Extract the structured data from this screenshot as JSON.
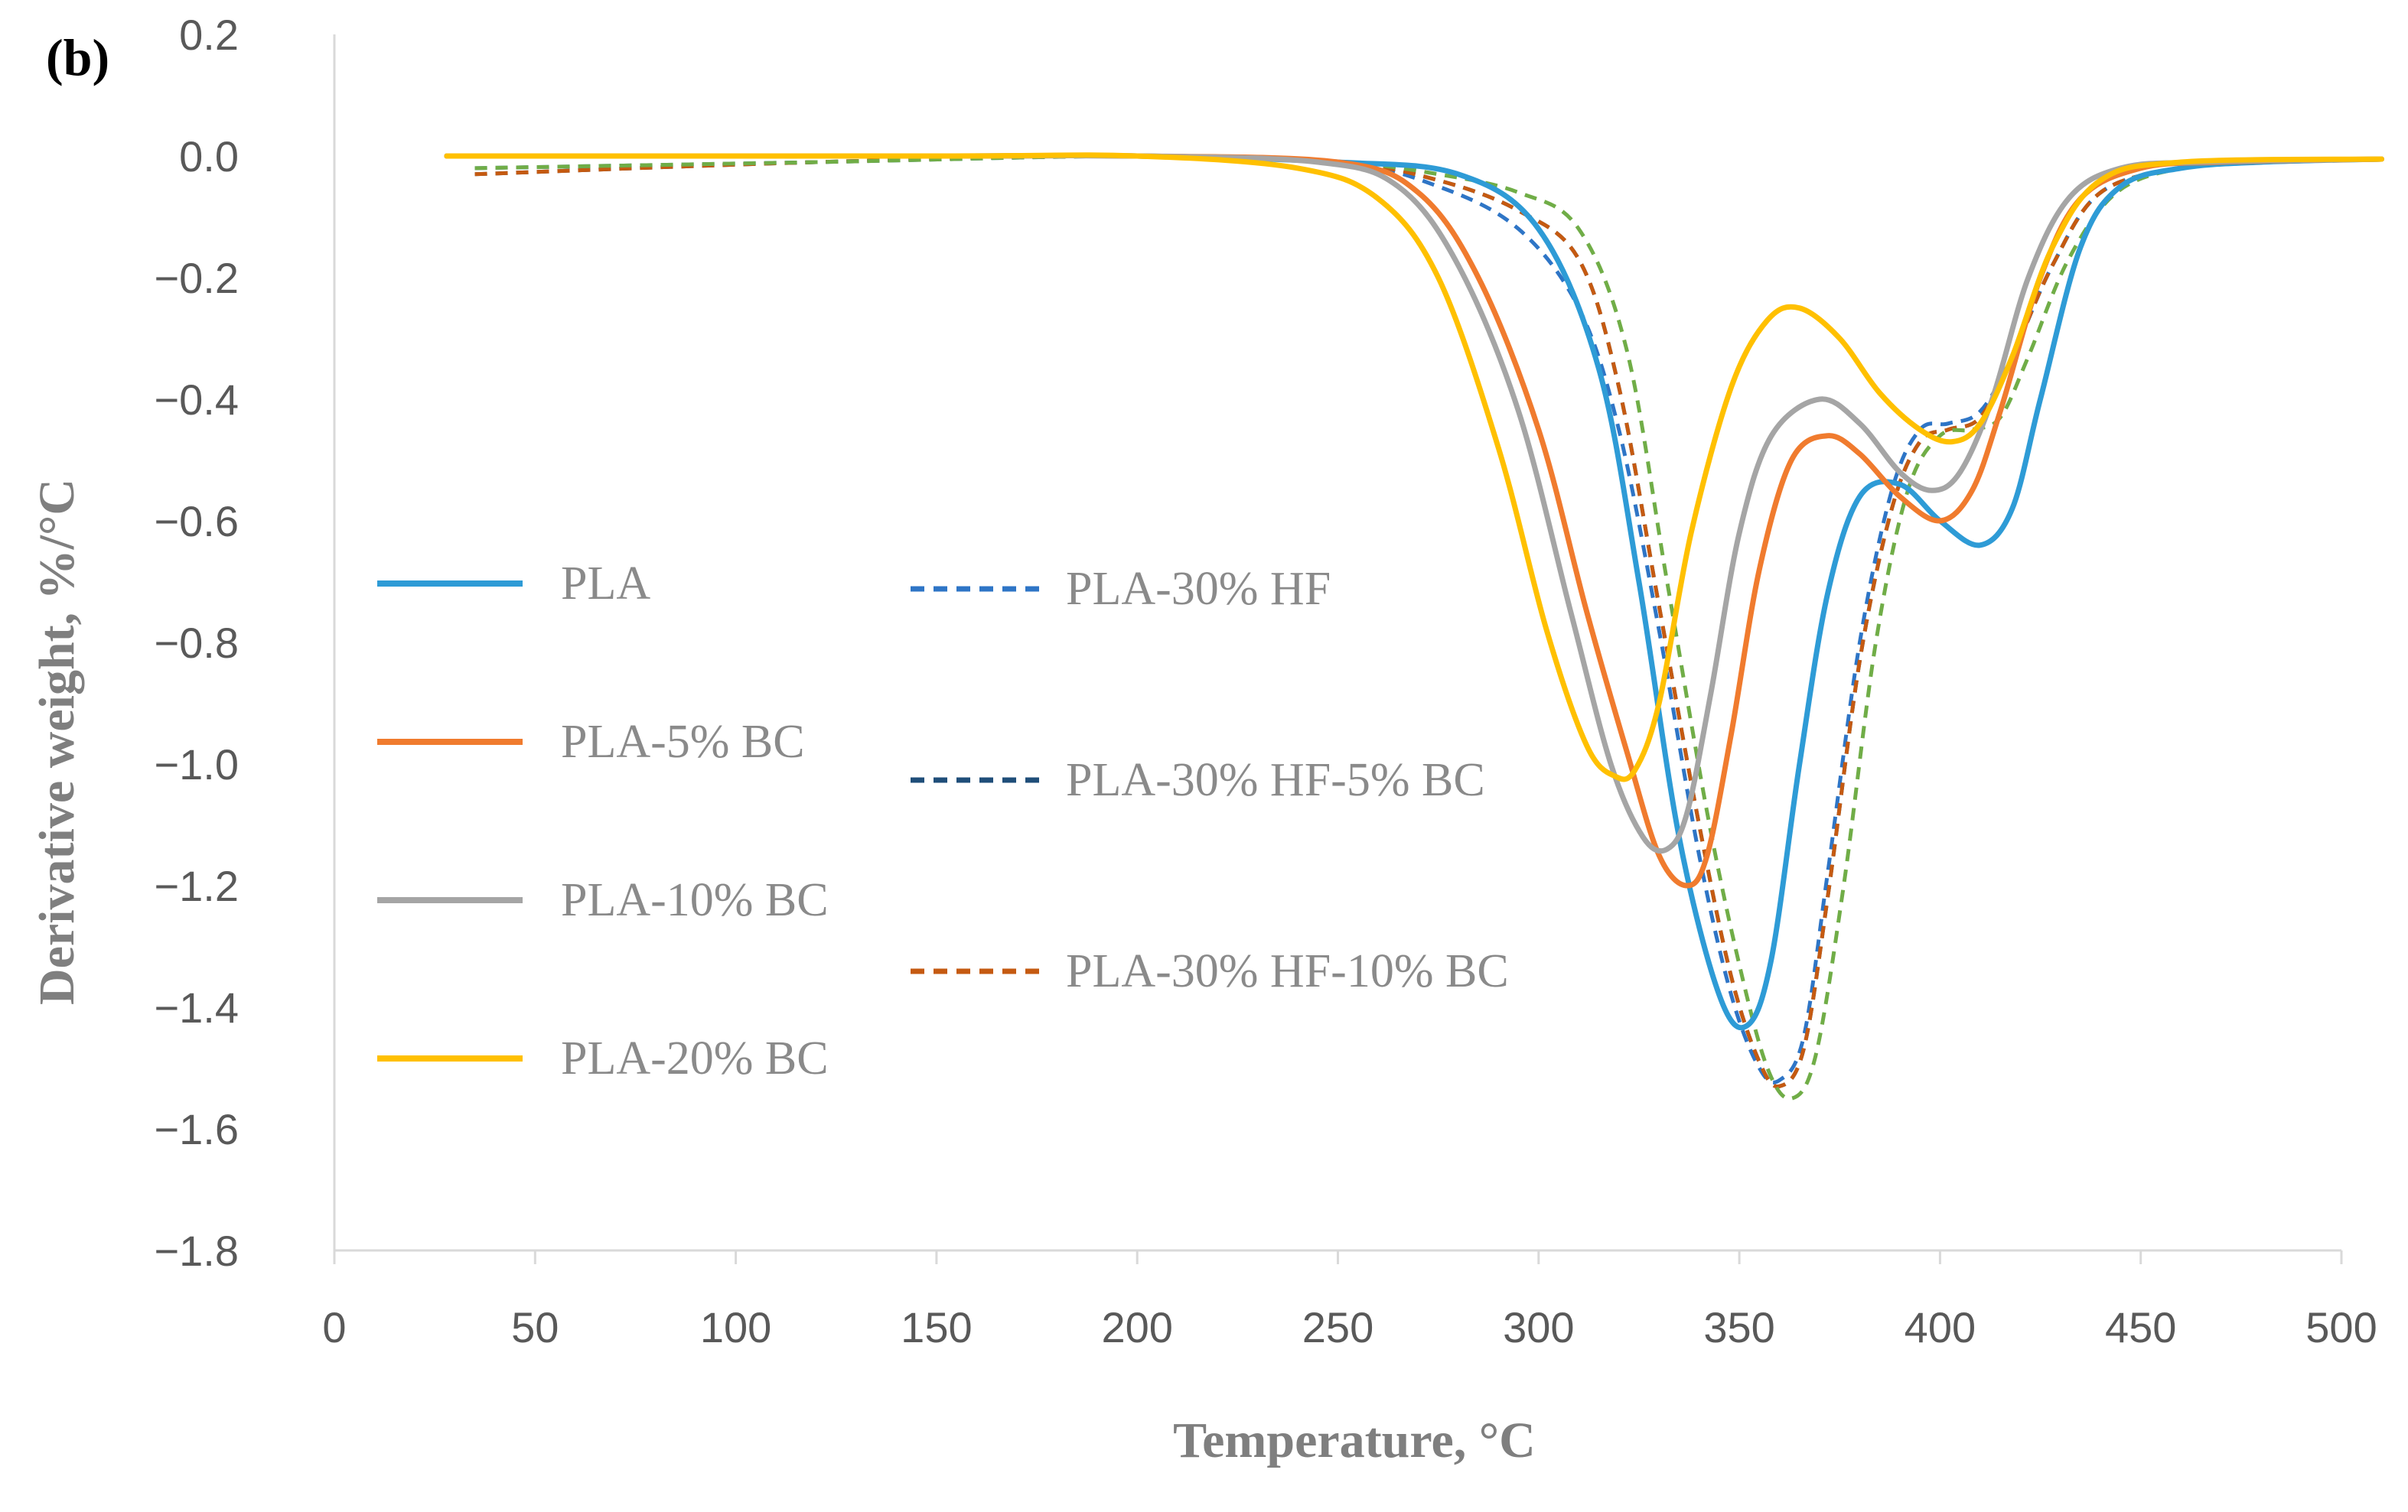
{
  "chart_data": {
    "type": "line",
    "panel_label": "(b)",
    "xlabel": "Temperature, °C",
    "ylabel": "Derivative weight, %/°C",
    "xlim": [
      0,
      500
    ],
    "ylim": [
      -1.8,
      0.2
    ],
    "x_ticks": [
      "0",
      "50",
      "100",
      "150",
      "200",
      "250",
      "300",
      "350",
      "400",
      "450",
      "500"
    ],
    "y_ticks": [
      "0.2",
      "0.0",
      "−0.2",
      "−0.4",
      "−0.6",
      "−0.8",
      "−1.0",
      "−1.2",
      "−1.4",
      "−1.6",
      "−1.8"
    ],
    "grid": false,
    "legend_position": "left-inside",
    "series": [
      {
        "name": "PLA",
        "color": "#2E9BD6",
        "dash": "solid",
        "x": [
          28,
          150,
          200,
          250,
          280,
          300,
          315,
          325,
          335,
          345,
          352,
          358,
          365,
          372,
          380,
          390,
          400,
          410,
          418,
          425,
          435,
          445,
          460,
          480,
          510
        ],
        "y": [
          0.0,
          0.0,
          0.0,
          -0.01,
          -0.03,
          -0.12,
          -0.35,
          -0.7,
          -1.12,
          -1.38,
          -1.43,
          -1.32,
          -1.0,
          -0.72,
          -0.56,
          -0.54,
          -0.6,
          -0.64,
          -0.58,
          -0.4,
          -0.15,
          -0.05,
          -0.02,
          -0.01,
          -0.005
        ]
      },
      {
        "name": "PLA-5% BC",
        "color": "#F07B2E",
        "dash": "solid",
        "x": [
          28,
          150,
          200,
          250,
          270,
          285,
          300,
          312,
          322,
          330,
          337,
          342,
          348,
          355,
          363,
          372,
          380,
          390,
          400,
          408,
          415,
          425,
          435,
          450,
          470,
          510
        ],
        "y": [
          0.0,
          0.0,
          0.0,
          -0.01,
          -0.06,
          -0.2,
          -0.45,
          -0.75,
          -0.98,
          -1.15,
          -1.2,
          -1.15,
          -0.95,
          -0.68,
          -0.5,
          -0.46,
          -0.49,
          -0.56,
          -0.6,
          -0.55,
          -0.42,
          -0.2,
          -0.07,
          -0.02,
          -0.01,
          -0.005
        ]
      },
      {
        "name": "PLA-10% BC",
        "color": "#A5A5A5",
        "dash": "solid",
        "x": [
          28,
          150,
          200,
          245,
          265,
          280,
          295,
          308,
          318,
          326,
          332,
          337,
          343,
          350,
          358,
          370,
          380,
          390,
          398,
          405,
          413,
          422,
          432,
          445,
          465,
          510
        ],
        "y": [
          0.0,
          0.0,
          0.0,
          -0.01,
          -0.05,
          -0.18,
          -0.42,
          -0.75,
          -1.0,
          -1.12,
          -1.14,
          -1.08,
          -0.88,
          -0.62,
          -0.46,
          -0.4,
          -0.44,
          -0.52,
          -0.55,
          -0.52,
          -0.4,
          -0.2,
          -0.07,
          -0.02,
          -0.01,
          -0.005
        ]
      },
      {
        "name": "PLA-20% BC",
        "color": "#FFC000",
        "dash": "solid",
        "x": [
          28,
          150,
          200,
          240,
          260,
          275,
          290,
          302,
          312,
          319,
          324,
          330,
          338,
          348,
          357,
          365,
          375,
          385,
          395,
          403,
          410,
          418,
          428,
          440,
          460,
          510
        ],
        "y": [
          0.0,
          0.0,
          0.0,
          -0.02,
          -0.07,
          -0.2,
          -0.48,
          -0.78,
          -0.97,
          -1.02,
          -1.01,
          -0.9,
          -0.62,
          -0.38,
          -0.27,
          -0.25,
          -0.3,
          -0.39,
          -0.45,
          -0.47,
          -0.44,
          -0.33,
          -0.15,
          -0.04,
          -0.01,
          -0.005
        ]
      },
      {
        "name": "PLA-30% HF",
        "color": "#2E75C6",
        "dash": "dashed",
        "x": [
          35,
          120,
          200,
          250,
          275,
          295,
          310,
          320,
          330,
          340,
          348,
          355,
          360,
          366,
          372,
          380,
          388,
          395,
          402,
          410,
          418,
          428,
          440,
          460,
          480,
          510
        ],
        "y": [
          -0.02,
          -0.01,
          0.0,
          -0.01,
          -0.05,
          -0.12,
          -0.25,
          -0.45,
          -0.78,
          -1.15,
          -1.38,
          -1.5,
          -1.52,
          -1.45,
          -1.18,
          -0.8,
          -0.55,
          -0.45,
          -0.44,
          -0.42,
          -0.33,
          -0.18,
          -0.06,
          -0.02,
          -0.01,
          -0.005
        ]
      },
      {
        "name": "PLA-30% HF-5% BC",
        "color": "#1F4E79",
        "dash": "dashed",
        "x": [
          35,
          120,
          200,
          250,
          275,
          295,
          310,
          320,
          330,
          340,
          348,
          355,
          360,
          366,
          372,
          380,
          388,
          395,
          402,
          410,
          418,
          428,
          440,
          460,
          480,
          510
        ],
        "y": [
          -0.03,
          -0.01,
          0.0,
          -0.01,
          -0.04,
          -0.09,
          -0.17,
          -0.38,
          -0.74,
          -1.1,
          -1.35,
          -1.49,
          -1.53,
          -1.47,
          -1.22,
          -0.83,
          -0.58,
          -0.47,
          -0.45,
          -0.43,
          -0.33,
          -0.18,
          -0.06,
          -0.02,
          -0.01,
          -0.005
        ]
      },
      {
        "name": "PLA-30% HF-10% BC",
        "color": "#C55A11",
        "dash": "dashed",
        "x": [
          35,
          120,
          200,
          250,
          275,
          295,
          310,
          320,
          330,
          340,
          348,
          355,
          360,
          366,
          372,
          380,
          388,
          395,
          402,
          410,
          418,
          428,
          440,
          460,
          480,
          510
        ],
        "y": [
          -0.03,
          -0.01,
          0.0,
          -0.01,
          -0.04,
          -0.09,
          -0.17,
          -0.38,
          -0.74,
          -1.1,
          -1.35,
          -1.49,
          -1.53,
          -1.47,
          -1.22,
          -0.83,
          -0.58,
          -0.47,
          -0.45,
          -0.43,
          -0.33,
          -0.18,
          -0.06,
          -0.02,
          -0.01,
          -0.005
        ]
      },
      {
        "name": "",
        "color": "#70AD47",
        "dash": "dashed",
        "x": [
          35,
          120,
          200,
          250,
          275,
          295,
          310,
          322,
          332,
          342,
          350,
          357,
          363,
          369,
          376,
          384,
          392,
          400,
          408,
          415,
          422,
          432,
          444,
          460,
          480,
          510
        ],
        "y": [
          -0.02,
          -0.01,
          0.0,
          -0.01,
          -0.03,
          -0.06,
          -0.12,
          -0.32,
          -0.7,
          -1.08,
          -1.33,
          -1.5,
          -1.55,
          -1.48,
          -1.2,
          -0.8,
          -0.55,
          -0.46,
          -0.45,
          -0.43,
          -0.33,
          -0.17,
          -0.06,
          -0.02,
          -0.01,
          -0.005
        ]
      }
    ]
  }
}
